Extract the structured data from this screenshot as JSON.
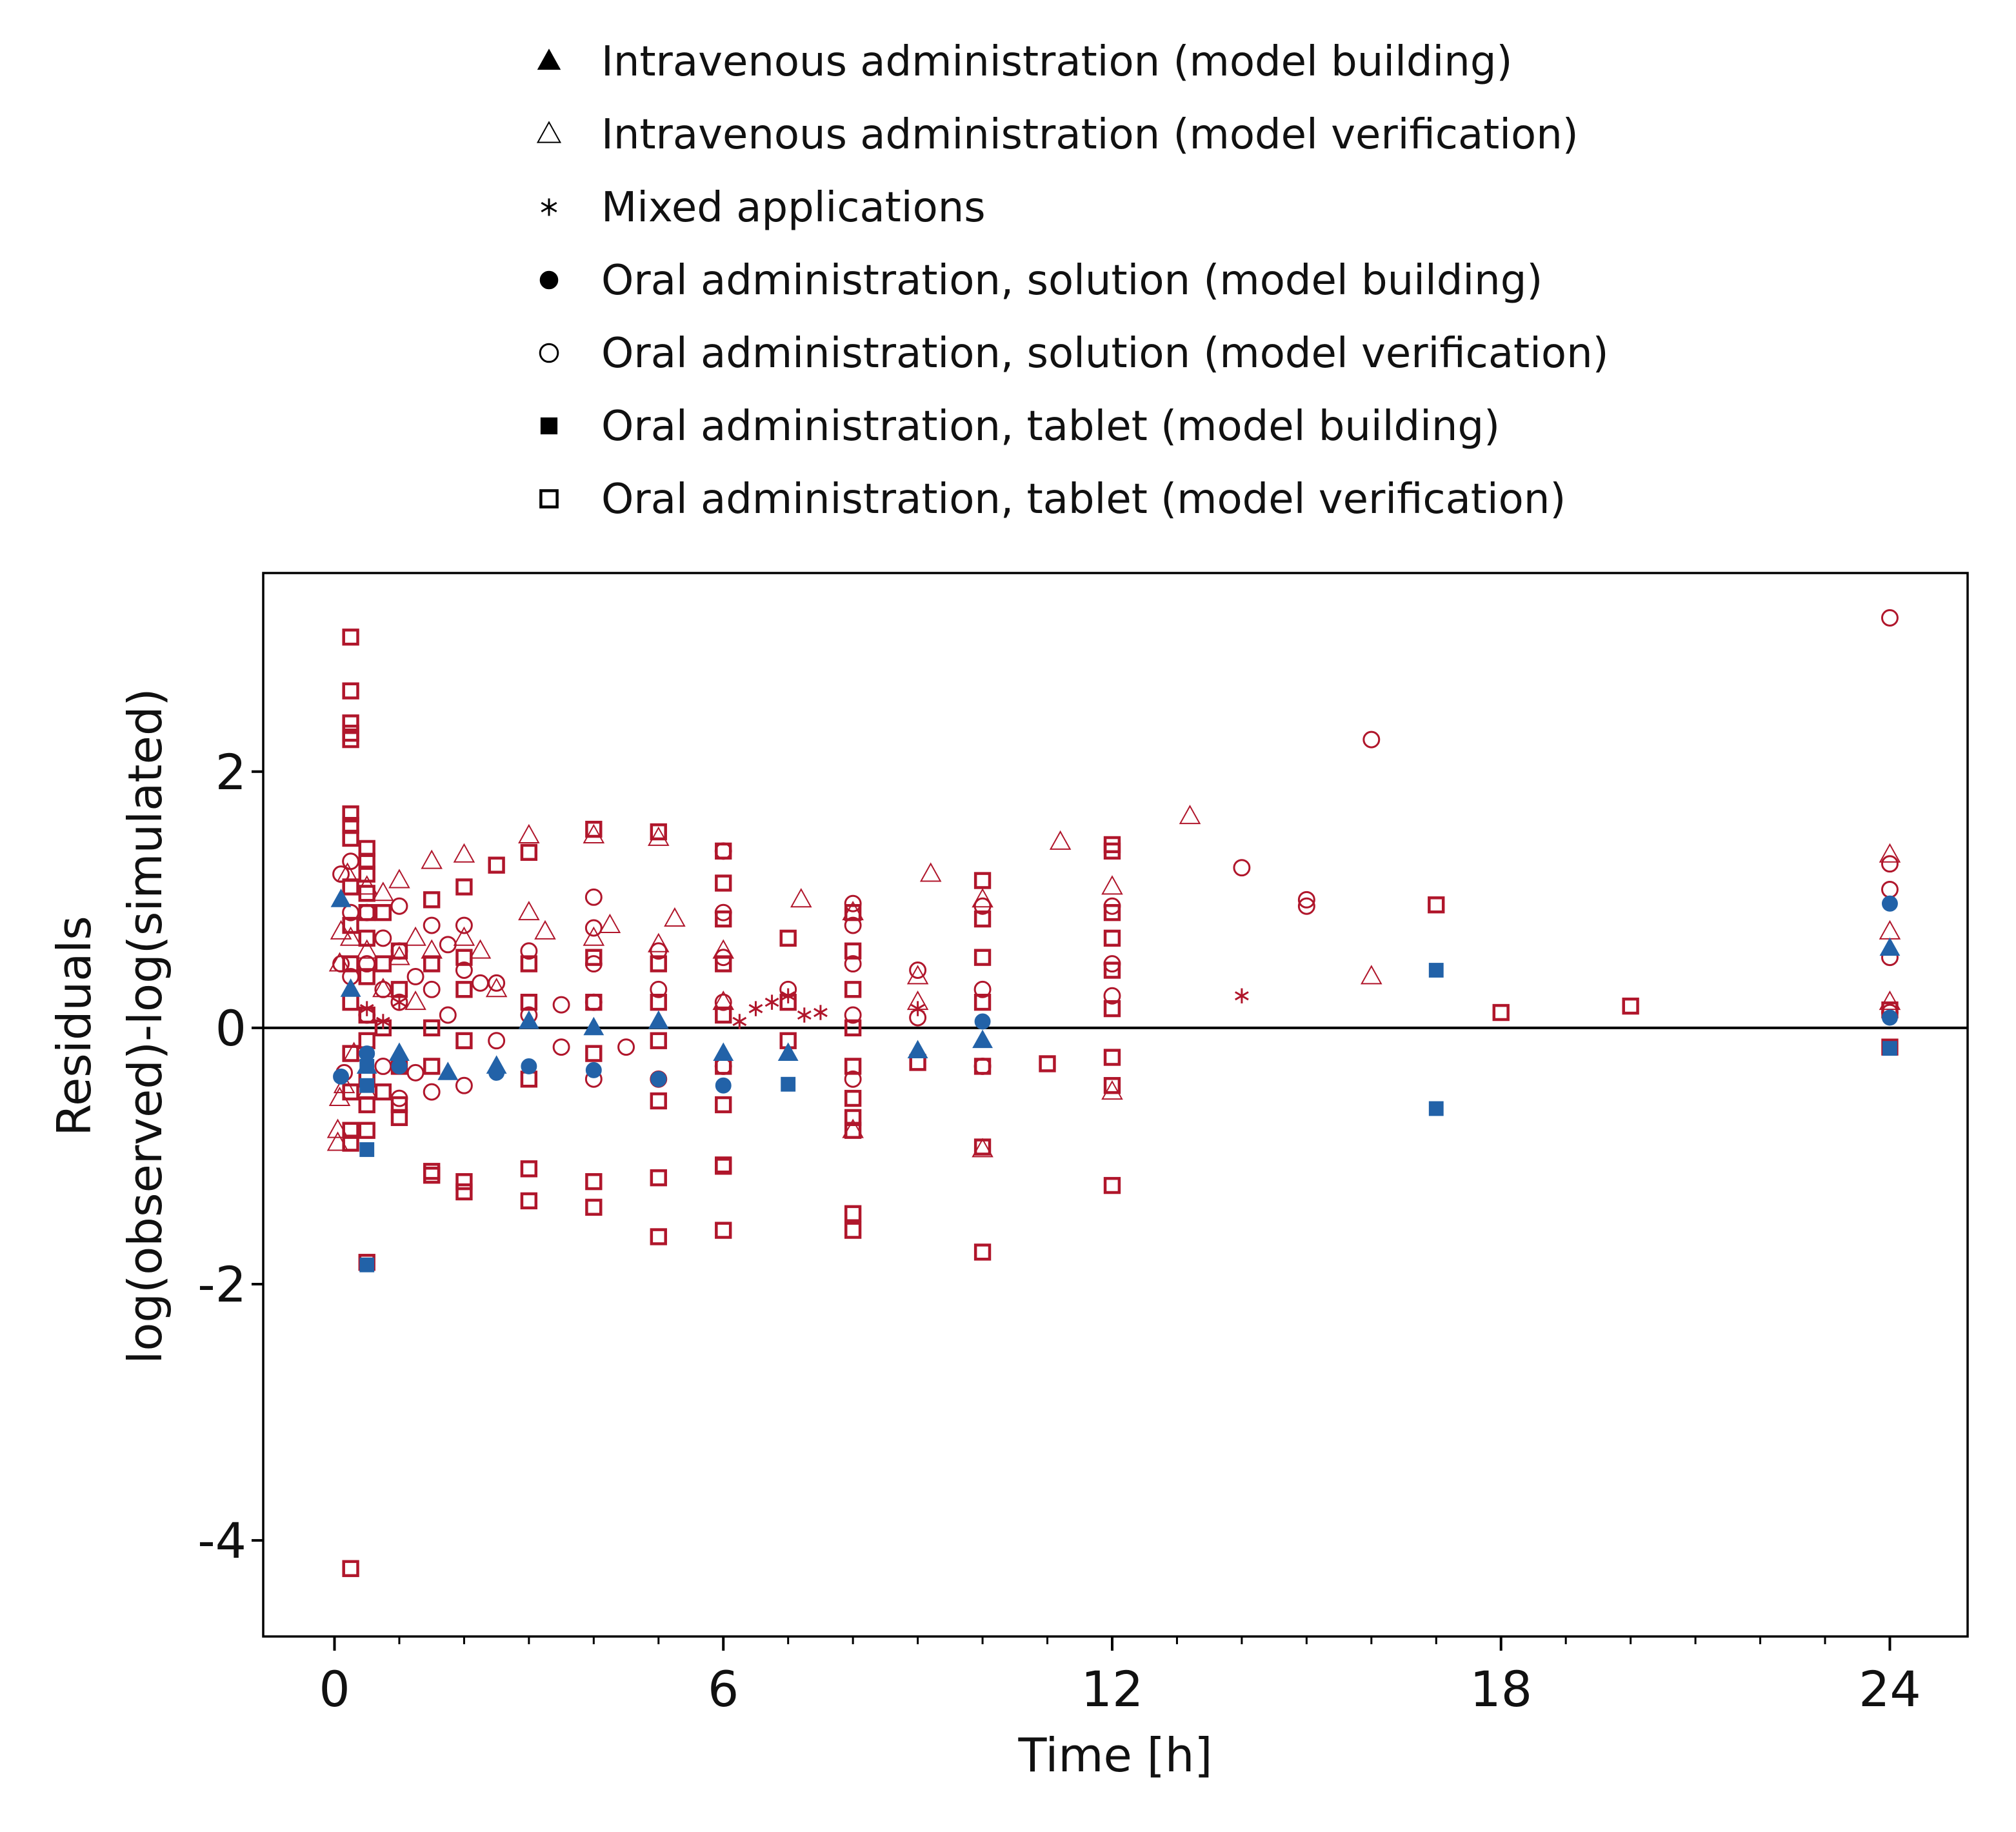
{
  "chart_data": {
    "type": "scatter",
    "xlabel": "Time [h]",
    "ylabel_lines": [
      "Residuals",
      "log(observed)-log(simulated)"
    ],
    "xlim": [
      -1.1,
      25.2
    ],
    "ylim": [
      -4.75,
      3.55
    ],
    "x_ticks": [
      0,
      6,
      12,
      18,
      24
    ],
    "x_tick_labels": [
      "0",
      "6",
      "12",
      "18",
      "24"
    ],
    "x_minor_ticks": [
      1,
      2,
      3,
      4,
      5,
      7,
      8,
      9,
      10,
      11,
      13,
      14,
      15,
      16,
      17,
      19,
      20,
      21,
      22,
      23
    ],
    "y_ticks": [
      2,
      0,
      -2,
      -4
    ],
    "y_tick_labels": [
      "2",
      "0",
      "-2",
      "-4"
    ],
    "reference_line_y": 0,
    "grid": false,
    "legend_position": "top",
    "colors": {
      "model_building": "#2262a8",
      "model_verification": "#b0162b",
      "axis": "#000000"
    },
    "series": [
      {
        "name": "Intravenous administration (model building)",
        "marker": "triangle-filled",
        "color": "#2262a8",
        "points": [
          [
            0.1,
            1.0
          ],
          [
            0.25,
            0.3
          ],
          [
            0.5,
            -0.3
          ],
          [
            1.0,
            -0.2
          ],
          [
            1.75,
            -0.35
          ],
          [
            2.5,
            -0.3
          ],
          [
            3.0,
            0.05
          ],
          [
            4.0,
            0.0
          ],
          [
            5.0,
            0.05
          ],
          [
            6.0,
            -0.2
          ],
          [
            7.0,
            -0.2
          ],
          [
            9.0,
            -0.18
          ],
          [
            10.0,
            -0.1
          ],
          [
            24.0,
            0.62
          ]
        ]
      },
      {
        "name": "Intravenous administration (model verification)",
        "marker": "triangle-open",
        "color": "#b0162b",
        "points": [
          [
            0.05,
            -0.9
          ],
          [
            0.05,
            -0.8
          ],
          [
            0.08,
            -0.55
          ],
          [
            0.08,
            0.5
          ],
          [
            0.1,
            0.75
          ],
          [
            0.15,
            -0.45
          ],
          [
            0.2,
            1.2
          ],
          [
            0.25,
            0.7
          ],
          [
            0.3,
            -0.2
          ],
          [
            0.5,
            1.1
          ],
          [
            0.5,
            0.6
          ],
          [
            0.5,
            -0.5
          ],
          [
            0.75,
            1.05
          ],
          [
            0.75,
            0.3
          ],
          [
            1.0,
            1.15
          ],
          [
            1.0,
            0.55
          ],
          [
            1.25,
            0.7
          ],
          [
            1.25,
            0.2
          ],
          [
            1.5,
            1.3
          ],
          [
            1.5,
            0.6
          ],
          [
            2.0,
            1.35
          ],
          [
            2.0,
            0.7
          ],
          [
            2.25,
            0.6
          ],
          [
            2.5,
            0.3
          ],
          [
            3.0,
            1.5
          ],
          [
            3.0,
            0.9
          ],
          [
            3.25,
            0.75
          ],
          [
            4.0,
            1.5
          ],
          [
            4.0,
            0.7
          ],
          [
            4.25,
            0.8
          ],
          [
            5.0,
            1.48
          ],
          [
            5.0,
            0.65
          ],
          [
            5.25,
            0.85
          ],
          [
            6.0,
            0.6
          ],
          [
            6.0,
            0.2
          ],
          [
            7.2,
            1.0
          ],
          [
            8.0,
            -0.8
          ],
          [
            8.0,
            0.9
          ],
          [
            9.0,
            0.4
          ],
          [
            9.0,
            0.2
          ],
          [
            9.2,
            1.2
          ],
          [
            10.0,
            1.0
          ],
          [
            10.0,
            -0.95
          ],
          [
            11.2,
            1.45
          ],
          [
            12.0,
            1.1
          ],
          [
            12.0,
            -0.5
          ],
          [
            13.2,
            1.65
          ],
          [
            16.0,
            0.4
          ],
          [
            24.0,
            1.35
          ],
          [
            24.0,
            0.75
          ],
          [
            24.0,
            0.2
          ]
        ]
      },
      {
        "name": "Mixed applications",
        "marker": "asterisk",
        "color": "#b0162b",
        "points": [
          [
            0.5,
            0.15
          ],
          [
            0.75,
            0.05
          ],
          [
            1.0,
            0.2
          ],
          [
            6.25,
            0.05
          ],
          [
            6.5,
            0.15
          ],
          [
            6.75,
            0.2
          ],
          [
            7.0,
            0.25
          ],
          [
            7.25,
            0.1
          ],
          [
            7.5,
            0.12
          ],
          [
            9.0,
            0.15
          ],
          [
            14.0,
            0.25
          ]
        ]
      },
      {
        "name": "Oral administration, solution (model building)",
        "marker": "circle-filled",
        "color": "#2262a8",
        "points": [
          [
            0.1,
            -0.38
          ],
          [
            0.5,
            -0.2
          ],
          [
            1.0,
            -0.3
          ],
          [
            2.5,
            -0.35
          ],
          [
            3.0,
            -0.3
          ],
          [
            4.0,
            -0.33
          ],
          [
            5.0,
            -0.4
          ],
          [
            6.0,
            -0.45
          ],
          [
            10.0,
            0.05
          ],
          [
            24.0,
            0.97
          ],
          [
            24.0,
            0.08
          ]
        ]
      },
      {
        "name": "Oral administration, solution (model verification)",
        "marker": "circle-open",
        "color": "#b0162b",
        "points": [
          [
            0.1,
            1.2
          ],
          [
            0.1,
            0.5
          ],
          [
            0.15,
            -0.35
          ],
          [
            0.25,
            1.3
          ],
          [
            0.25,
            0.9
          ],
          [
            0.25,
            0.4
          ],
          [
            0.5,
            0.9
          ],
          [
            0.5,
            0.5
          ],
          [
            0.5,
            0.1
          ],
          [
            0.75,
            0.7
          ],
          [
            0.75,
            0.3
          ],
          [
            0.75,
            -0.3
          ],
          [
            1.0,
            0.95
          ],
          [
            1.0,
            0.6
          ],
          [
            1.0,
            0.2
          ],
          [
            1.0,
            -0.55
          ],
          [
            1.25,
            0.4
          ],
          [
            1.25,
            -0.35
          ],
          [
            1.5,
            0.8
          ],
          [
            1.5,
            0.3
          ],
          [
            1.5,
            -0.5
          ],
          [
            1.75,
            0.65
          ],
          [
            1.75,
            0.1
          ],
          [
            2.0,
            0.8
          ],
          [
            2.0,
            0.45
          ],
          [
            2.0,
            -0.45
          ],
          [
            2.25,
            0.35
          ],
          [
            2.5,
            0.35
          ],
          [
            2.5,
            -0.1
          ],
          [
            3.0,
            0.6
          ],
          [
            3.0,
            0.1
          ],
          [
            3.5,
            0.18
          ],
          [
            3.5,
            -0.15
          ],
          [
            4.0,
            1.02
          ],
          [
            4.0,
            0.78
          ],
          [
            4.0,
            0.5
          ],
          [
            4.0,
            0.2
          ],
          [
            4.0,
            -0.4
          ],
          [
            4.5,
            -0.15
          ],
          [
            5.0,
            0.6
          ],
          [
            5.0,
            0.3
          ],
          [
            5.0,
            -0.4
          ],
          [
            6.0,
            1.38
          ],
          [
            6.0,
            0.9
          ],
          [
            6.0,
            0.55
          ],
          [
            6.0,
            0.2
          ],
          [
            6.0,
            -0.3
          ],
          [
            7.0,
            0.3
          ],
          [
            8.0,
            0.97
          ],
          [
            8.0,
            0.8
          ],
          [
            8.0,
            0.5
          ],
          [
            8.0,
            0.1
          ],
          [
            8.0,
            -0.4
          ],
          [
            9.0,
            0.45
          ],
          [
            9.0,
            0.08
          ],
          [
            10.0,
            0.95
          ],
          [
            10.0,
            0.3
          ],
          [
            10.0,
            -0.3
          ],
          [
            12.0,
            0.95
          ],
          [
            12.0,
            0.5
          ],
          [
            12.0,
            0.25
          ],
          [
            14.0,
            1.25
          ],
          [
            15.0,
            1.0
          ],
          [
            15.0,
            0.95
          ],
          [
            16.0,
            2.25
          ],
          [
            24.0,
            3.2
          ],
          [
            24.0,
            1.28
          ],
          [
            24.0,
            1.08
          ],
          [
            24.0,
            0.55
          ],
          [
            24.0,
            0.12
          ]
        ]
      },
      {
        "name": "Oral administration, tablet (model building)",
        "marker": "square-filled",
        "color": "#2262a8",
        "points": [
          [
            0.5,
            -0.3
          ],
          [
            0.5,
            -0.45
          ],
          [
            0.5,
            -0.95
          ],
          [
            0.5,
            -1.85
          ],
          [
            7.0,
            -0.44
          ],
          [
            17.0,
            0.45
          ],
          [
            17.0,
            -0.63
          ],
          [
            24.0,
            -0.16
          ]
        ]
      },
      {
        "name": "Oral administration, tablet (model verification)",
        "marker": "square-open",
        "color": "#b0162b",
        "points": [
          [
            0.25,
            3.05
          ],
          [
            0.25,
            2.63
          ],
          [
            0.25,
            2.38
          ],
          [
            0.25,
            2.3
          ],
          [
            0.25,
            2.25
          ],
          [
            0.25,
            1.67
          ],
          [
            0.25,
            1.58
          ],
          [
            0.25,
            1.48
          ],
          [
            0.25,
            1.1
          ],
          [
            0.25,
            0.8
          ],
          [
            0.25,
            0.5
          ],
          [
            0.25,
            0.2
          ],
          [
            0.25,
            -0.2
          ],
          [
            0.25,
            -0.5
          ],
          [
            0.25,
            -0.8
          ],
          [
            0.25,
            -0.9
          ],
          [
            0.25,
            -4.22
          ],
          [
            0.5,
            1.4
          ],
          [
            0.5,
            1.3
          ],
          [
            0.5,
            1.2
          ],
          [
            0.5,
            1.05
          ],
          [
            0.5,
            0.9
          ],
          [
            0.5,
            0.7
          ],
          [
            0.5,
            0.4
          ],
          [
            0.5,
            0.1
          ],
          [
            0.5,
            -0.1
          ],
          [
            0.5,
            -0.4
          ],
          [
            0.5,
            -0.6
          ],
          [
            0.5,
            -0.8
          ],
          [
            0.5,
            -1.83
          ],
          [
            0.75,
            0.9
          ],
          [
            0.75,
            0.5
          ],
          [
            0.75,
            0.0
          ],
          [
            0.75,
            -0.5
          ],
          [
            1.0,
            0.6
          ],
          [
            1.0,
            0.3
          ],
          [
            1.0,
            -0.3
          ],
          [
            1.0,
            -0.6
          ],
          [
            1.0,
            -0.7
          ],
          [
            1.5,
            1.0
          ],
          [
            1.5,
            0.5
          ],
          [
            1.5,
            0.0
          ],
          [
            1.5,
            -0.3
          ],
          [
            1.5,
            -1.12
          ],
          [
            1.5,
            -1.15
          ],
          [
            2.0,
            1.1
          ],
          [
            2.0,
            0.55
          ],
          [
            2.0,
            0.3
          ],
          [
            2.0,
            -0.1
          ],
          [
            2.0,
            -1.2
          ],
          [
            2.0,
            -1.28
          ],
          [
            2.5,
            1.27
          ],
          [
            3.0,
            1.37
          ],
          [
            3.0,
            0.5
          ],
          [
            3.0,
            0.2
          ],
          [
            3.0,
            -0.4
          ],
          [
            3.0,
            -1.1
          ],
          [
            3.0,
            -1.35
          ],
          [
            4.0,
            1.55
          ],
          [
            4.0,
            0.55
          ],
          [
            4.0,
            0.2
          ],
          [
            4.0,
            -0.2
          ],
          [
            4.0,
            -1.2
          ],
          [
            4.0,
            -1.4
          ],
          [
            5.0,
            1.53
          ],
          [
            5.0,
            0.5
          ],
          [
            5.0,
            0.2
          ],
          [
            5.0,
            -0.1
          ],
          [
            5.0,
            -0.57
          ],
          [
            5.0,
            -1.17
          ],
          [
            5.0,
            -1.63
          ],
          [
            6.0,
            1.38
          ],
          [
            6.0,
            1.13
          ],
          [
            6.0,
            0.85
          ],
          [
            6.0,
            0.5
          ],
          [
            6.0,
            0.1
          ],
          [
            6.0,
            -0.3
          ],
          [
            6.0,
            -0.6
          ],
          [
            6.0,
            -1.07
          ],
          [
            6.0,
            -1.08
          ],
          [
            6.0,
            -1.58
          ],
          [
            7.0,
            0.7
          ],
          [
            7.0,
            0.2
          ],
          [
            7.0,
            -0.1
          ],
          [
            8.0,
            0.9
          ],
          [
            8.0,
            0.6
          ],
          [
            8.0,
            0.3
          ],
          [
            8.0,
            0.0
          ],
          [
            8.0,
            -0.3
          ],
          [
            8.0,
            -0.55
          ],
          [
            8.0,
            -0.7
          ],
          [
            8.0,
            -0.8
          ],
          [
            8.0,
            -1.45
          ],
          [
            8.0,
            -1.58
          ],
          [
            9.0,
            -0.27
          ],
          [
            10.0,
            1.15
          ],
          [
            10.0,
            0.85
          ],
          [
            10.0,
            0.55
          ],
          [
            10.0,
            0.2
          ],
          [
            10.0,
            -0.3
          ],
          [
            10.0,
            -0.93
          ],
          [
            10.0,
            -1.75
          ],
          [
            11.0,
            -0.28
          ],
          [
            12.0,
            1.43
          ],
          [
            12.0,
            1.38
          ],
          [
            12.0,
            0.9
          ],
          [
            12.0,
            0.7
          ],
          [
            12.0,
            0.45
          ],
          [
            12.0,
            0.15
          ],
          [
            12.0,
            -0.23
          ],
          [
            12.0,
            -0.45
          ],
          [
            12.0,
            -1.23
          ],
          [
            17.0,
            0.96
          ],
          [
            18.0,
            0.12
          ],
          [
            20.0,
            0.17
          ],
          [
            24.0,
            0.14
          ],
          [
            24.0,
            -0.15
          ]
        ]
      }
    ]
  }
}
